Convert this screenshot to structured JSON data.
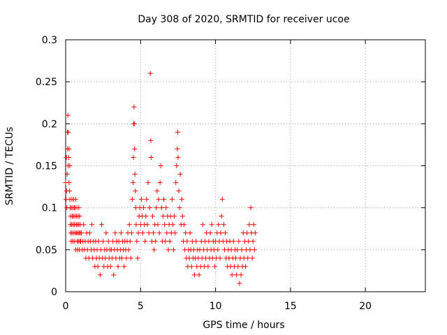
{
  "chart_data": {
    "type": "scatter",
    "title": "Day 308 of 2020, SRMTID for receiver ucoe",
    "xlabel": "GPS time / hours",
    "ylabel": "SRMTID / TECUs",
    "xlim": [
      0,
      24
    ],
    "ylim": [
      0,
      0.3
    ],
    "xticks": [
      0,
      5,
      10,
      15,
      20
    ],
    "xtick_labels": [
      "0",
      "5",
      "10",
      "15",
      "20"
    ],
    "yticks": [
      0,
      0.05,
      0.1,
      0.15,
      0.2,
      0.25,
      0.3
    ],
    "ytick_labels": [
      "0",
      "0.05",
      "0.1",
      "0.15",
      "0.2",
      "0.25",
      "0.3"
    ],
    "grid": true,
    "marker": "+",
    "color": "#ff0000",
    "series": [
      {
        "name": "SRMTID",
        "points": [
          [
            0.0,
            0.13
          ],
          [
            0.03,
            0.11
          ],
          [
            0.05,
            0.16
          ],
          [
            0.07,
            0.12
          ],
          [
            0.08,
            0.1
          ],
          [
            0.1,
            0.14
          ],
          [
            0.12,
            0.19
          ],
          [
            0.13,
            0.17
          ],
          [
            0.15,
            0.21
          ],
          [
            0.17,
            0.15
          ],
          [
            0.18,
            0.19
          ],
          [
            0.2,
            0.16
          ],
          [
            0.22,
            0.13
          ],
          [
            0.23,
            0.17
          ],
          [
            0.25,
            0.12
          ],
          [
            0.27,
            0.15
          ],
          [
            0.28,
            0.11
          ],
          [
            0.3,
            0.1
          ],
          [
            0.32,
            0.08
          ],
          [
            0.33,
            0.09
          ],
          [
            0.35,
            0.07
          ],
          [
            0.37,
            0.06
          ],
          [
            0.38,
            0.1
          ],
          [
            0.4,
            0.08
          ],
          [
            0.42,
            0.11
          ],
          [
            0.43,
            0.07
          ],
          [
            0.45,
            0.09
          ],
          [
            0.47,
            0.1
          ],
          [
            0.48,
            0.06
          ],
          [
            0.5,
            0.08
          ],
          [
            0.52,
            0.09
          ],
          [
            0.53,
            0.11
          ],
          [
            0.55,
            0.07
          ],
          [
            0.57,
            0.1
          ],
          [
            0.58,
            0.08
          ],
          [
            0.6,
            0.06
          ],
          [
            0.62,
            0.09
          ],
          [
            0.63,
            0.1
          ],
          [
            0.65,
            0.07
          ],
          [
            0.67,
            0.11
          ],
          [
            0.68,
            0.05
          ],
          [
            0.7,
            0.08
          ],
          [
            0.72,
            0.09
          ],
          [
            0.73,
            0.07
          ],
          [
            0.75,
            0.1
          ],
          [
            0.77,
            0.06
          ],
          [
            0.78,
            0.08
          ],
          [
            0.8,
            0.05
          ],
          [
            0.82,
            0.07
          ],
          [
            0.83,
            0.09
          ],
          [
            0.85,
            0.06
          ],
          [
            0.87,
            0.08
          ],
          [
            0.88,
            0.1
          ],
          [
            0.9,
            0.07
          ],
          [
            0.92,
            0.05
          ],
          [
            0.93,
            0.09
          ],
          [
            0.95,
            0.06
          ],
          [
            0.97,
            0.08
          ],
          [
            0.98,
            0.07
          ],
          [
            1.0,
            0.06
          ],
          [
            1.05,
            0.07
          ],
          [
            1.1,
            0.05
          ],
          [
            1.15,
            0.06
          ],
          [
            1.2,
            0.08
          ],
          [
            1.25,
            0.05
          ],
          [
            1.3,
            0.06
          ],
          [
            1.35,
            0.04
          ],
          [
            1.4,
            0.07
          ],
          [
            1.45,
            0.05
          ],
          [
            1.5,
            0.06
          ],
          [
            1.55,
            0.04
          ],
          [
            1.6,
            0.07
          ],
          [
            1.65,
            0.06
          ],
          [
            1.7,
            0.05
          ],
          [
            1.75,
            0.08
          ],
          [
            1.8,
            0.04
          ],
          [
            1.85,
            0.06
          ],
          [
            1.9,
            0.05
          ],
          [
            1.95,
            0.03
          ],
          [
            2.0,
            0.06
          ],
          [
            2.05,
            0.04
          ],
          [
            2.1,
            0.05
          ],
          [
            2.15,
            0.03
          ],
          [
            2.2,
            0.06
          ],
          [
            2.25,
            0.04
          ],
          [
            2.3,
            0.02
          ],
          [
            2.35,
            0.05
          ],
          [
            2.4,
            0.08
          ],
          [
            2.45,
            0.04
          ],
          [
            2.5,
            0.06
          ],
          [
            2.55,
            0.03
          ],
          [
            2.6,
            0.05
          ],
          [
            2.65,
            0.04
          ],
          [
            2.7,
            0.07
          ],
          [
            2.75,
            0.05
          ],
          [
            2.8,
            0.03
          ],
          [
            2.85,
            0.06
          ],
          [
            2.9,
            0.04
          ],
          [
            2.95,
            0.05
          ],
          [
            3.0,
            0.03
          ],
          [
            3.05,
            0.05
          ],
          [
            3.1,
            0.04
          ],
          [
            3.15,
            0.06
          ],
          [
            3.2,
            0.02
          ],
          [
            3.25,
            0.05
          ],
          [
            3.3,
            0.07
          ],
          [
            3.35,
            0.04
          ],
          [
            3.4,
            0.06
          ],
          [
            3.45,
            0.05
          ],
          [
            3.5,
            0.03
          ],
          [
            3.55,
            0.06
          ],
          [
            3.6,
            0.04
          ],
          [
            3.65,
            0.05
          ],
          [
            3.7,
            0.07
          ],
          [
            3.75,
            0.04
          ],
          [
            3.8,
            0.06
          ],
          [
            3.85,
            0.05
          ],
          [
            3.9,
            0.03
          ],
          [
            3.95,
            0.06
          ],
          [
            4.0,
            0.05
          ],
          [
            4.05,
            0.04
          ],
          [
            4.1,
            0.06
          ],
          [
            4.15,
            0.07
          ],
          [
            4.2,
            0.05
          ],
          [
            4.25,
            0.08
          ],
          [
            4.3,
            0.06
          ],
          [
            4.35,
            0.04
          ],
          [
            4.4,
            0.07
          ],
          [
            4.45,
            0.11
          ],
          [
            4.5,
            0.13
          ],
          [
            4.52,
            0.16
          ],
          [
            4.54,
            0.2
          ],
          [
            4.56,
            0.22
          ],
          [
            4.58,
            0.2
          ],
          [
            4.6,
            0.17
          ],
          [
            4.62,
            0.14
          ],
          [
            4.65,
            0.12
          ],
          [
            4.68,
            0.1
          ],
          [
            4.7,
            0.08
          ],
          [
            4.75,
            0.06
          ],
          [
            4.8,
            0.04
          ],
          [
            4.85,
            0.07
          ],
          [
            4.9,
            0.09
          ],
          [
            4.95,
            0.1
          ],
          [
            5.0,
            0.08
          ],
          [
            5.05,
            0.11
          ],
          [
            5.1,
            0.09
          ],
          [
            5.15,
            0.07
          ],
          [
            5.2,
            0.1
          ],
          [
            5.25,
            0.08
          ],
          [
            5.3,
            0.06
          ],
          [
            5.35,
            0.09
          ],
          [
            5.4,
            0.11
          ],
          [
            5.45,
            0.08
          ],
          [
            5.5,
            0.13
          ],
          [
            5.55,
            0.07
          ],
          [
            5.6,
            0.1
          ],
          [
            5.65,
            0.26
          ],
          [
            5.68,
            0.18
          ],
          [
            5.7,
            0.16
          ],
          [
            5.75,
            0.06
          ],
          [
            5.8,
            0.09
          ],
          [
            5.85,
            0.07
          ],
          [
            5.9,
            0.05
          ],
          [
            5.95,
            0.08
          ],
          [
            6.0,
            0.06
          ],
          [
            6.05,
            0.1
          ],
          [
            6.1,
            0.12
          ],
          [
            6.15,
            0.08
          ],
          [
            6.2,
            0.11
          ],
          [
            6.25,
            0.07
          ],
          [
            6.3,
            0.13
          ],
          [
            6.35,
            0.15
          ],
          [
            6.4,
            0.1
          ],
          [
            6.45,
            0.06
          ],
          [
            6.5,
            0.09
          ],
          [
            6.55,
            0.11
          ],
          [
            6.6,
            0.08
          ],
          [
            6.65,
            0.06
          ],
          [
            6.7,
            0.1
          ],
          [
            6.75,
            0.07
          ],
          [
            6.8,
            0.09
          ],
          [
            6.85,
            0.05
          ],
          [
            6.9,
            0.08
          ],
          [
            6.95,
            0.06
          ],
          [
            7.0,
            0.09
          ],
          [
            7.05,
            0.07
          ],
          [
            7.1,
            0.11
          ],
          [
            7.15,
            0.08
          ],
          [
            7.2,
            0.05
          ],
          [
            7.25,
            0.09
          ],
          [
            7.3,
            0.07
          ],
          [
            7.35,
            0.13
          ],
          [
            7.4,
            0.15
          ],
          [
            7.45,
            0.17
          ],
          [
            7.48,
            0.19
          ],
          [
            7.5,
            0.16
          ],
          [
            7.55,
            0.12
          ],
          [
            7.6,
            0.1
          ],
          [
            7.65,
            0.14
          ],
          [
            7.7,
            0.08
          ],
          [
            7.75,
            0.11
          ],
          [
            7.8,
            0.09
          ],
          [
            7.85,
            0.06
          ],
          [
            7.9,
            0.08
          ],
          [
            7.95,
            0.05
          ],
          [
            8.0,
            0.07
          ],
          [
            8.05,
            0.04
          ],
          [
            8.1,
            0.06
          ],
          [
            8.15,
            0.03
          ],
          [
            8.2,
            0.05
          ],
          [
            8.25,
            0.04
          ],
          [
            8.3,
            0.07
          ],
          [
            8.35,
            0.05
          ],
          [
            8.4,
            0.03
          ],
          [
            8.45,
            0.06
          ],
          [
            8.5,
            0.04
          ],
          [
            8.55,
            0.05
          ],
          [
            8.6,
            0.02
          ],
          [
            8.65,
            0.04
          ],
          [
            8.7,
            0.06
          ],
          [
            8.75,
            0.03
          ],
          [
            8.8,
            0.05
          ],
          [
            8.85,
            0.04
          ],
          [
            8.9,
            0.02
          ],
          [
            8.95,
            0.05
          ],
          [
            9.0,
            0.03
          ],
          [
            9.05,
            0.06
          ],
          [
            9.1,
            0.04
          ],
          [
            9.15,
            0.08
          ],
          [
            9.2,
            0.05
          ],
          [
            9.25,
            0.03
          ],
          [
            9.3,
            0.06
          ],
          [
            9.35,
            0.04
          ],
          [
            9.4,
            0.07
          ],
          [
            9.45,
            0.05
          ],
          [
            9.5,
            0.03
          ],
          [
            9.55,
            0.06
          ],
          [
            9.6,
            0.04
          ],
          [
            9.65,
            0.07
          ],
          [
            9.7,
            0.05
          ],
          [
            9.75,
            0.08
          ],
          [
            9.8,
            0.04
          ],
          [
            9.85,
            0.06
          ],
          [
            9.9,
            0.05
          ],
          [
            9.95,
            0.03
          ],
          [
            10.0,
            0.06
          ],
          [
            10.05,
            0.04
          ],
          [
            10.1,
            0.07
          ],
          [
            10.15,
            0.05
          ],
          [
            10.2,
            0.08
          ],
          [
            10.25,
            0.06
          ],
          [
            10.3,
            0.04
          ],
          [
            10.35,
            0.07
          ],
          [
            10.4,
            0.09
          ],
          [
            10.45,
            0.11
          ],
          [
            10.5,
            0.06
          ],
          [
            10.55,
            0.08
          ],
          [
            10.6,
            0.05
          ],
          [
            10.65,
            0.07
          ],
          [
            10.7,
            0.04
          ],
          [
            10.75,
            0.06
          ],
          [
            10.8,
            0.03
          ],
          [
            10.85,
            0.05
          ],
          [
            10.9,
            0.04
          ],
          [
            10.95,
            0.06
          ],
          [
            11.0,
            0.03
          ],
          [
            11.05,
            0.05
          ],
          [
            11.1,
            0.02
          ],
          [
            11.15,
            0.04
          ],
          [
            11.2,
            0.06
          ],
          [
            11.25,
            0.03
          ],
          [
            11.3,
            0.05
          ],
          [
            11.35,
            0.04
          ],
          [
            11.4,
            0.02
          ],
          [
            11.45,
            0.05
          ],
          [
            11.5,
            0.03
          ],
          [
            11.55,
            0.06
          ],
          [
            11.6,
            0.01
          ],
          [
            11.65,
            0.04
          ],
          [
            11.7,
            0.02
          ],
          [
            11.75,
            0.05
          ],
          [
            11.8,
            0.03
          ],
          [
            11.85,
            0.07
          ],
          [
            11.9,
            0.04
          ],
          [
            11.95,
            0.06
          ],
          [
            12.0,
            0.03
          ],
          [
            12.05,
            0.05
          ],
          [
            12.1,
            0.07
          ],
          [
            12.15,
            0.04
          ],
          [
            12.2,
            0.06
          ],
          [
            12.25,
            0.08
          ],
          [
            12.3,
            0.05
          ],
          [
            12.35,
            0.1
          ],
          [
            12.4,
            0.07
          ],
          [
            12.45,
            0.04
          ],
          [
            12.5,
            0.06
          ],
          [
            12.55,
            0.08
          ],
          [
            12.6,
            0.05
          ],
          [
            12.65,
            0.07
          ]
        ]
      }
    ]
  }
}
